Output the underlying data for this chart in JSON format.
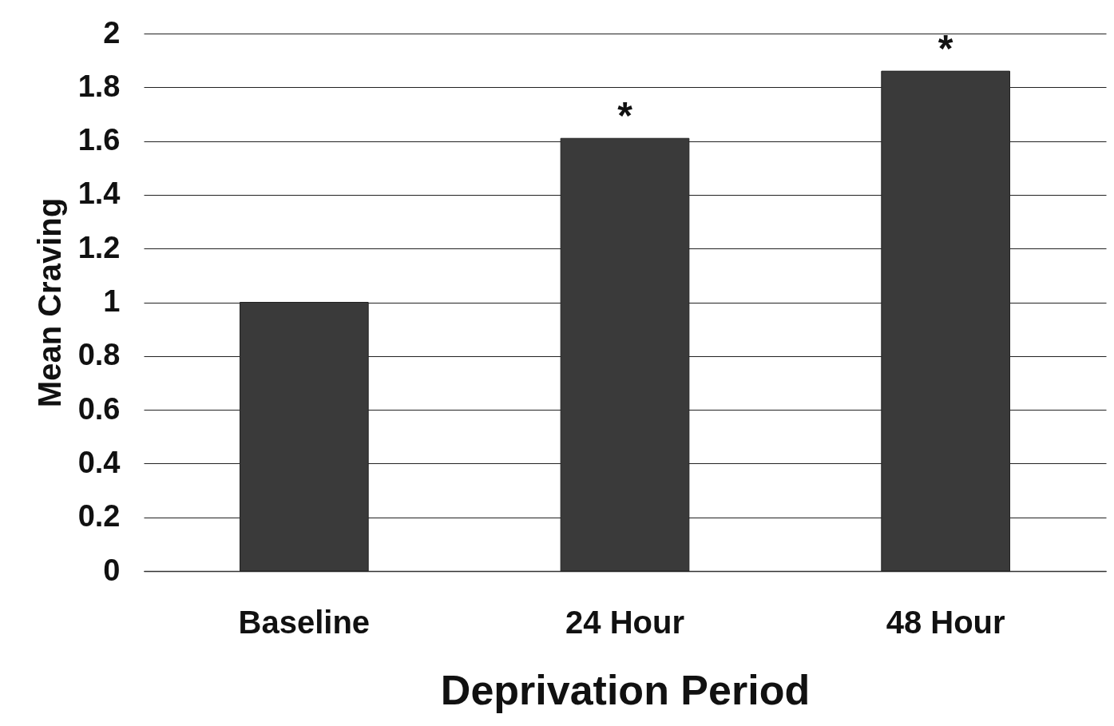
{
  "chart_data": {
    "type": "bar",
    "xlabel": "Deprivation Period",
    "ylabel": "Mean Craving",
    "categories": [
      "Baseline",
      "24 Hour",
      "48 Hour"
    ],
    "values": [
      1.0,
      1.61,
      1.86
    ],
    "color": "#3a3a3a",
    "ylim": [
      0,
      2
    ],
    "yticks": [
      0,
      0.2,
      0.4,
      0.6,
      0.8,
      1,
      1.2,
      1.4,
      1.6,
      1.8,
      2
    ],
    "grid": "y",
    "annotations": [
      {
        "text": "*",
        "x": "24 Hour",
        "y": 1.61
      },
      {
        "text": "*",
        "x": "48 Hour",
        "y": 1.86
      }
    ]
  }
}
